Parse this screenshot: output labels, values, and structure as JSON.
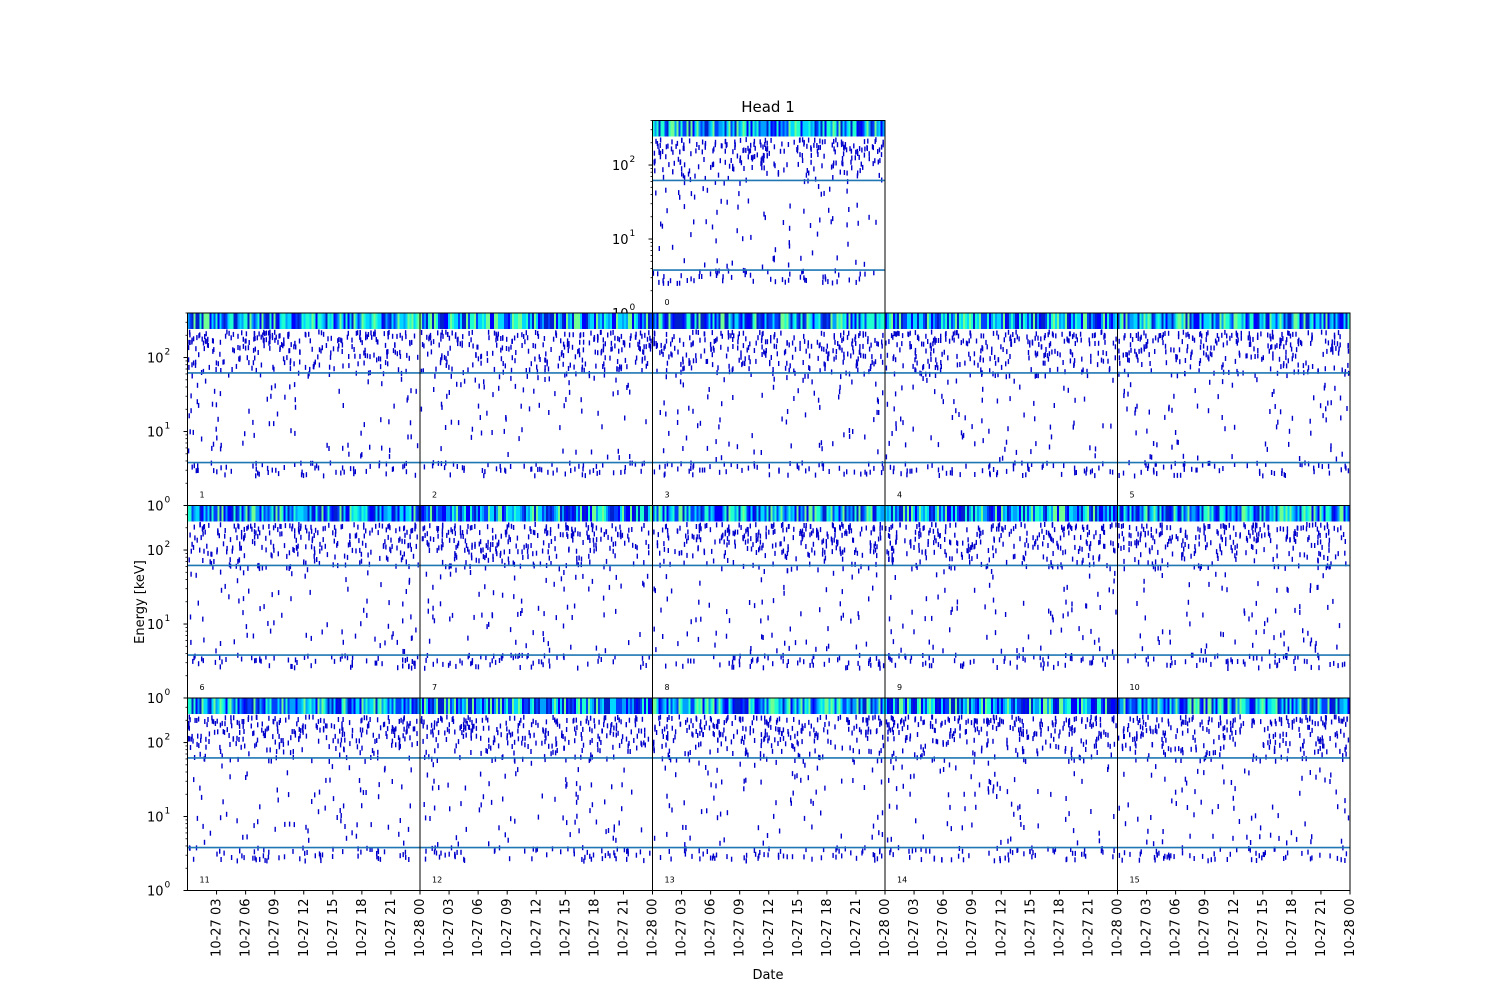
{
  "chart_data": {
    "type": "heatmap",
    "title": "Head 1",
    "xlabel": "Date",
    "ylabel": "Energy [keV]",
    "y_scale": "log",
    "ylim": [
      1,
      400
    ],
    "y_ticks": [
      1,
      10,
      100
    ],
    "y_tick_labels": [
      "10",
      "10",
      "10"
    ],
    "y_tick_exponents": [
      "0",
      "1",
      "2"
    ],
    "x_range": [
      "10-27 00:00",
      "10-28 00:00"
    ],
    "x_tick_labels": [
      "10-27 03",
      "10-27 06",
      "10-27 09",
      "10-27 12",
      "10-27 15",
      "10-27 18",
      "10-27 21",
      "10-28 00"
    ],
    "grid": false,
    "legend": "none",
    "colormap": "jet",
    "colors": {
      "line": "#1f77b4",
      "low": "#0000cc",
      "mid": "#00ccff",
      "high": "#66ff99"
    },
    "threshold_lines_keV": [
      3.8,
      62
    ],
    "panels": [
      {
        "label": "0"
      },
      {
        "label": "1"
      },
      {
        "label": "2"
      },
      {
        "label": "3"
      },
      {
        "label": "4"
      },
      {
        "label": "5"
      },
      {
        "label": "6"
      },
      {
        "label": "7"
      },
      {
        "label": "8"
      },
      {
        "label": "9"
      },
      {
        "label": "10"
      },
      {
        "label": "11"
      },
      {
        "label": "12"
      },
      {
        "label": "13"
      },
      {
        "label": "14"
      },
      {
        "label": "15"
      }
    ]
  }
}
